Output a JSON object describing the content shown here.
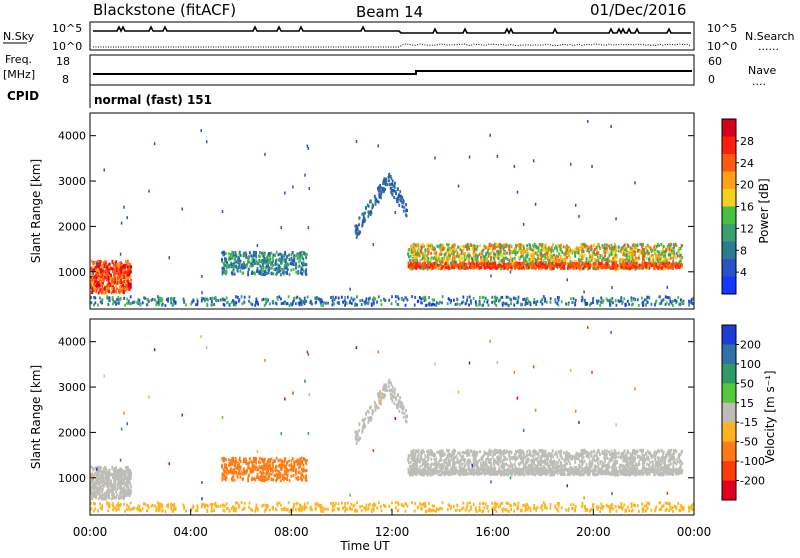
{
  "header": {
    "station": "Blackstone (fitACF)",
    "beam": "Beam 14",
    "date": "01/Dec/2016"
  },
  "noise_panel": {
    "left_label": "N.Sky",
    "right_label": "N.Search",
    "right_marker": "......",
    "left_top_tick": "10^5",
    "left_bottom_tick": "10^0",
    "right_top_tick": "10^5",
    "right_bottom_tick": "10^0"
  },
  "freq_panel": {
    "left_label_1": "Freq.",
    "left_label_2": "[MHz]",
    "left_top_tick": "18",
    "left_bottom_tick": "8",
    "right_label": "Nave",
    "right_marker": "....",
    "right_top_tick": "60",
    "right_bottom_tick": "0"
  },
  "cpid_panel": {
    "label": "CPID",
    "text": "normal (fast) 151"
  },
  "chart_data": [
    {
      "type": "heatmap",
      "name": "power",
      "ylabel": "Slant Range [km]",
      "yticks": [
        "1000",
        "2000",
        "3000",
        "4000"
      ],
      "ylim": [
        180,
        4500
      ],
      "colorbar_label": "Power [dB]",
      "colorbar_ticks": [
        "4",
        "8",
        "12",
        "16",
        "20",
        "24",
        "28"
      ],
      "colorbar_range": [
        0,
        32
      ],
      "colors": [
        "#1436ff",
        "#2a52c4",
        "#2c7a90",
        "#3aa070",
        "#46c043",
        "#f2d21a",
        "#ffa216",
        "#ff5a10",
        "#ff1e0a",
        "#d4001e"
      ]
    },
    {
      "type": "heatmap",
      "name": "velocity",
      "ylabel": "Slant Range [km]",
      "yticks": [
        "1000",
        "2000",
        "3000",
        "4000"
      ],
      "ylim": [
        180,
        4500
      ],
      "xlabel": "Time UT",
      "xticks": [
        "00:00",
        "04:00",
        "08:00",
        "12:00",
        "16:00",
        "20:00",
        "00:00"
      ],
      "colorbar_label": "Velocity [m s⁻¹]",
      "colorbar_ticks": [
        "200",
        "100",
        "50",
        "15",
        "-15",
        "-50",
        "-100",
        "-200"
      ],
      "colors": [
        "#1c3cd6",
        "#2e70a8",
        "#2e9a64",
        "#56c83a",
        "#bdbcb6",
        "#ffb41e",
        "#ff7c14",
        "#ff3c0a",
        "#e0001e"
      ]
    }
  ]
}
